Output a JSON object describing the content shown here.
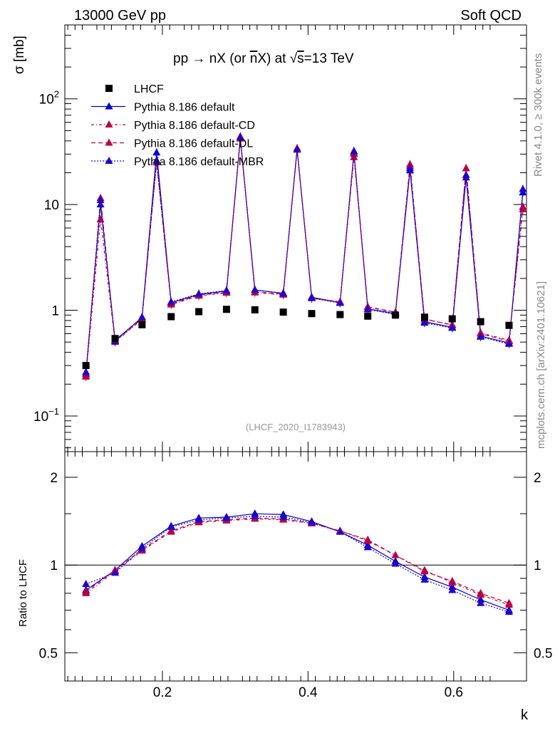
{
  "header": {
    "left": "13000 GeV pp",
    "right": "Soft QCD"
  },
  "side_labels": {
    "rivet": "Rivet 4.1.0, ≥ 300k events",
    "mcplots": "mcplots.cern.ch [arXiv:2401.10621]"
  },
  "analysis_id": "(LHCF_2020_I1783943)",
  "chart_data": [
    {
      "type": "line",
      "panel": "main",
      "title": "pp → nX (or n̅X) at √s=13 TeV",
      "title_parts": {
        "pre": "pp ",
        "arrow": "→",
        "mid": " nX (or ",
        "nbar": "n",
        "post_bar": "X) at ",
        "sqrt": "√",
        "s": "s",
        "tail": "=13 TeV"
      },
      "ylabel": "σ [mb]",
      "xlabel": "k",
      "yscale": "log",
      "xlim": [
        0.066,
        0.7
      ],
      "ylim": [
        0.046,
        500
      ],
      "yticks": [
        {
          "value": 0.1,
          "base": "10",
          "exp": "−1"
        },
        {
          "value": 1,
          "label": "1"
        },
        {
          "value": 10,
          "label": "10"
        },
        {
          "value": 100,
          "base": "10",
          "exp": "2"
        }
      ],
      "x": [
        0.095,
        0.115,
        0.135,
        0.172,
        0.192,
        0.212,
        0.25,
        0.288,
        0.307,
        0.327,
        0.366,
        0.385,
        0.405,
        0.444,
        0.463,
        0.482,
        0.52,
        0.54,
        0.56,
        0.598,
        0.617,
        0.637,
        0.676,
        0.695
      ],
      "data": {
        "name": "LHCF",
        "x": [
          0.095,
          0.135,
          0.172,
          0.212,
          0.25,
          0.288,
          0.327,
          0.366,
          0.405,
          0.444,
          0.482,
          0.52,
          0.56,
          0.598,
          0.637,
          0.676
        ],
        "y": [
          0.3,
          0.54,
          0.73,
          0.87,
          0.97,
          1.02,
          1.01,
          0.96,
          0.93,
          0.91,
          0.88,
          0.9,
          0.86,
          0.83,
          0.78,
          0.72
        ]
      },
      "series": [
        {
          "name": "Pythia 8.186 default",
          "color": "#0000cc",
          "dash": "solid",
          "y": [
            0.25,
            10.0,
            0.52,
            0.85,
            31.0,
            1.18,
            1.41,
            1.52,
            42.0,
            1.55,
            1.45,
            33.0,
            1.33,
            1.18,
            31.0,
            1.03,
            0.93,
            21.0,
            0.78,
            0.69,
            18.0,
            0.57,
            0.49,
            13.0
          ]
        },
        {
          "name": "Pythia 8.186 default-CD",
          "color": "#bb0044",
          "dash": "4,3,1,3",
          "y": [
            0.24,
            7.2,
            0.5,
            0.82,
            25.0,
            1.13,
            1.37,
            1.46,
            44.0,
            1.47,
            1.4,
            34.0,
            1.3,
            1.19,
            28.0,
            1.07,
            0.95,
            24.0,
            0.83,
            0.72,
            22.0,
            0.61,
            0.52,
            9.0
          ]
        },
        {
          "name": "Pythia 8.186 default-DL",
          "color": "#bb0044",
          "dash": "6,4",
          "y": [
            0.235,
            11.5,
            0.51,
            0.83,
            26.0,
            1.15,
            1.39,
            1.48,
            42.0,
            1.49,
            1.42,
            34.0,
            1.31,
            1.2,
            30.0,
            1.08,
            0.96,
            23.0,
            0.82,
            0.73,
            22.0,
            0.6,
            0.51,
            9.5
          ]
        },
        {
          "name": "Pythia 8.186 default-MBR",
          "color": "#2200cc",
          "dash": "2,2",
          "y": [
            0.26,
            11.0,
            0.51,
            0.86,
            26.0,
            1.2,
            1.43,
            1.54,
            43.0,
            1.56,
            1.44,
            33.0,
            1.3,
            1.17,
            32.0,
            1.02,
            0.91,
            22.0,
            0.76,
            0.68,
            19.0,
            0.56,
            0.48,
            14.0
          ]
        }
      ]
    },
    {
      "type": "line",
      "panel": "ratio",
      "ylabel": "Ratio to LHCF",
      "xlabel": "k",
      "yscale": "log",
      "xlim": [
        0.066,
        0.7
      ],
      "ylim": [
        0.4,
        2.45
      ],
      "yticks": [
        0.5,
        1,
        2
      ],
      "xticks": [
        0.2,
        0.4,
        0.6
      ],
      "x": [
        0.095,
        0.135,
        0.172,
        0.212,
        0.25,
        0.288,
        0.327,
        0.366,
        0.405,
        0.444,
        0.482,
        0.52,
        0.56,
        0.598,
        0.637,
        0.676
      ],
      "series": [
        {
          "name": "Pythia 8.186 default",
          "color": "#0000cc",
          "dash": "solid",
          "y": [
            0.82,
            0.96,
            1.16,
            1.36,
            1.45,
            1.46,
            1.5,
            1.49,
            1.41,
            1.3,
            1.17,
            1.03,
            0.91,
            0.84,
            0.76,
            0.7
          ]
        },
        {
          "name": "Pythia 8.186 default-CD",
          "color": "#bb0044",
          "dash": "4,3,1,3",
          "y": [
            0.8,
            0.95,
            1.12,
            1.3,
            1.4,
            1.42,
            1.44,
            1.43,
            1.39,
            1.31,
            1.21,
            1.08,
            0.96,
            0.87,
            0.79,
            0.73
          ]
        },
        {
          "name": "Pythia 8.186 default-DL",
          "color": "#bb0044",
          "dash": "6,4",
          "y": [
            0.81,
            0.96,
            1.13,
            1.31,
            1.41,
            1.43,
            1.45,
            1.44,
            1.39,
            1.31,
            1.22,
            1.08,
            0.95,
            0.88,
            0.8,
            0.74
          ]
        },
        {
          "name": "Pythia 8.186 default-MBR",
          "color": "#2200cc",
          "dash": "2,2",
          "y": [
            0.86,
            0.94,
            1.14,
            1.35,
            1.43,
            1.45,
            1.47,
            1.46,
            1.4,
            1.3,
            1.15,
            1.01,
            0.89,
            0.82,
            0.74,
            0.69
          ]
        }
      ]
    }
  ]
}
